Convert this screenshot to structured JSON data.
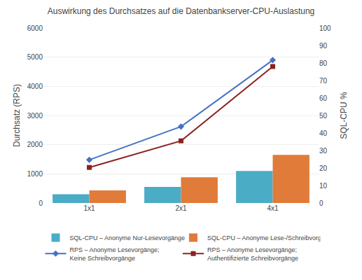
{
  "chart_data": {
    "type": "bar",
    "title": "Auswirkung des Durchsatzes auf die Datenbankserver-CPU-Auslastung",
    "categories": [
      "1x1",
      "2x1",
      "4x1"
    ],
    "series": [
      {
        "name": "SQL-CPU – Anonyme Nur-Lesevorgänge",
        "type": "bar",
        "color": "#4bacc6",
        "values": [
          300,
          550,
          1100
        ]
      },
      {
        "name": "SQL-CPU – Anonyme Lese-/Schreibvorgänge",
        "type": "bar",
        "color": "#e07b39",
        "values": [
          430,
          880,
          1650
        ]
      },
      {
        "name": "RPS – Anonyme Lesevorgänge;\nKeine Schreibvorgänge",
        "type": "line",
        "color": "#4472c4",
        "marker": "diamond",
        "values": [
          1480,
          2620,
          4900
        ]
      },
      {
        "name": "RPS – Anonyme Lesevorgänge;\nAuthentifizierte Schreibvorgänge",
        "type": "line",
        "color": "#8b2222",
        "marker": "square",
        "values": [
          1220,
          2130,
          4680
        ]
      }
    ],
    "ylabel": "Durchsatz (RPS)",
    "y2label": "SQL-CPU %",
    "ylim": [
      0,
      6000
    ],
    "yticks": [
      0,
      1000,
      2000,
      3000,
      4000,
      5000,
      6000
    ],
    "y2lim": [
      0,
      100
    ],
    "y2ticks": [
      0,
      10,
      20,
      30,
      40,
      50,
      60,
      70,
      80,
      90,
      100
    ],
    "grid": true,
    "legend": "lower center"
  }
}
